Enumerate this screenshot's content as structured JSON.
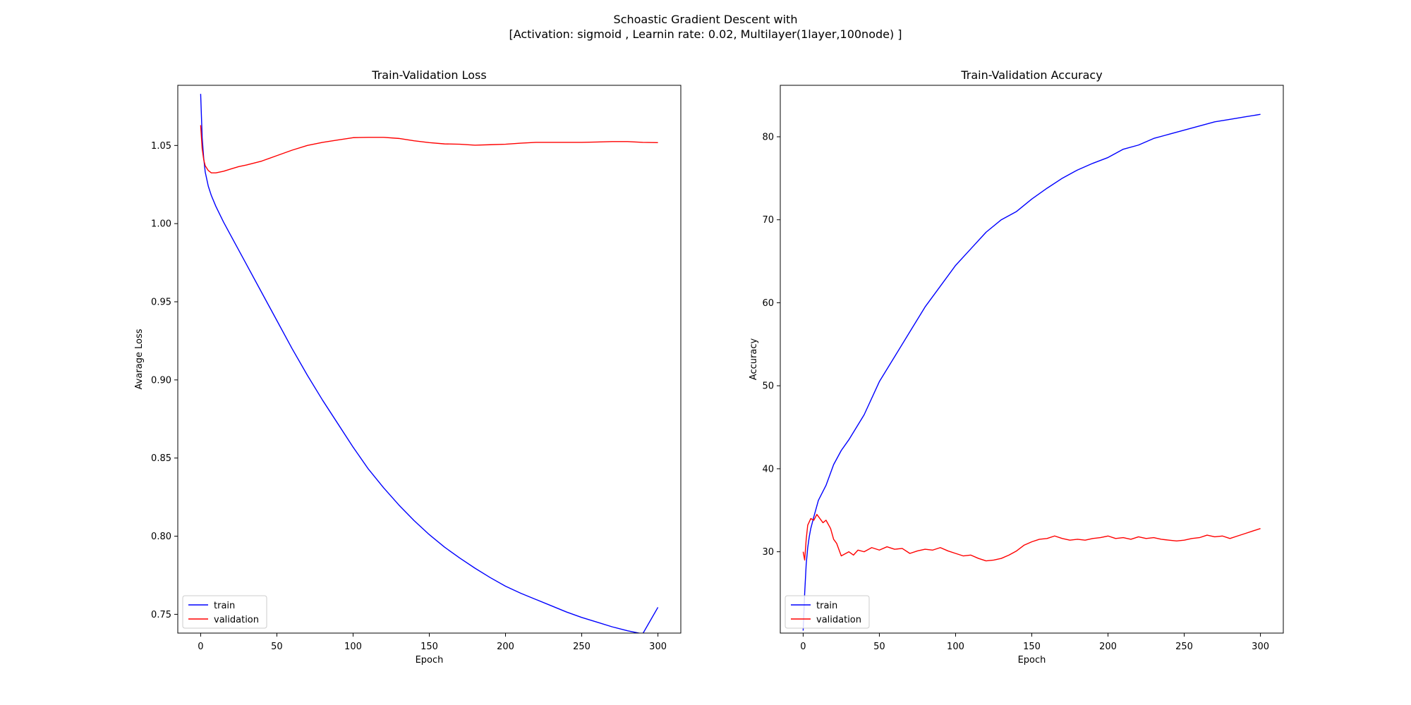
{
  "figure": {
    "suptitle_line1": "Schoastic Gradient Descent with",
    "suptitle_line2": "[Activation: sigmoid , Learnin rate: 0.02, Multilayer(1layer,100node) ]"
  },
  "chart_data": [
    {
      "type": "line",
      "title": "Train-Validation Loss",
      "xlabel": "Epoch",
      "ylabel": "Avarage Loss",
      "xlim": [
        -15,
        315
      ],
      "ylim": [
        0.738,
        1.0885
      ],
      "xticks": [
        0,
        50,
        100,
        150,
        200,
        250,
        300
      ],
      "yticks": [
        0.75,
        0.8,
        0.85,
        0.9,
        0.95,
        1.0,
        1.05
      ],
      "ytick_labels": [
        "0.75",
        "0.80",
        "0.85",
        "0.90",
        "0.95",
        "1.00",
        "1.05"
      ],
      "legend_position": "lower-left",
      "grid": false,
      "series": [
        {
          "name": "train",
          "color": "#0000ff",
          "x": [
            0,
            1,
            2,
            3,
            5,
            7,
            10,
            15,
            20,
            30,
            40,
            50,
            60,
            70,
            80,
            90,
            100,
            110,
            120,
            130,
            140,
            150,
            160,
            170,
            180,
            190,
            200,
            210,
            220,
            230,
            240,
            250,
            260,
            270,
            280,
            290,
            300
          ],
          "y": [
            1.083,
            1.055,
            1.042,
            1.033,
            1.024,
            1.018,
            1.011,
            1.001,
            0.992,
            0.974,
            0.956,
            0.938,
            0.92,
            0.903,
            0.887,
            0.872,
            0.857,
            0.843,
            0.831,
            0.82,
            0.81,
            0.801,
            0.793,
            0.786,
            0.7795,
            0.7735,
            0.768,
            0.7635,
            0.7595,
            0.7555,
            0.7515,
            0.748,
            0.745,
            0.742,
            0.7395,
            0.7375,
            0.7545
          ]
        },
        {
          "name": "validation",
          "color": "#ff0000",
          "x": [
            0,
            1,
            2,
            3,
            5,
            7,
            10,
            15,
            20,
            25,
            30,
            40,
            50,
            60,
            70,
            80,
            90,
            100,
            110,
            120,
            130,
            140,
            150,
            160,
            170,
            180,
            190,
            200,
            210,
            220,
            230,
            240,
            250,
            260,
            270,
            280,
            290,
            300
          ],
          "y": [
            1.063,
            1.048,
            1.041,
            1.037,
            1.034,
            1.0325,
            1.0325,
            1.0335,
            1.035,
            1.0365,
            1.0375,
            1.04,
            1.0435,
            1.047,
            1.05,
            1.052,
            1.0535,
            1.055,
            1.0552,
            1.0552,
            1.0545,
            1.053,
            1.0518,
            1.051,
            1.0508,
            1.0502,
            1.0505,
            1.0508,
            1.0515,
            1.052,
            1.052,
            1.052,
            1.052,
            1.0522,
            1.0525,
            1.0525,
            1.052,
            1.0518
          ]
        }
      ]
    },
    {
      "type": "line",
      "title": "Train-Validation Accuracy",
      "xlabel": "Epoch",
      "ylabel": "Accuracy",
      "xlim": [
        -15,
        315
      ],
      "ylim": [
        20.2,
        86.2
      ],
      "xticks": [
        0,
        50,
        100,
        150,
        200,
        250,
        300
      ],
      "yticks": [
        30,
        40,
        50,
        60,
        70,
        80
      ],
      "ytick_labels": [
        "30",
        "40",
        "50",
        "60",
        "70",
        "80"
      ],
      "legend_position": "lower-left",
      "grid": false,
      "series": [
        {
          "name": "train",
          "color": "#0000ff",
          "x": [
            0,
            1,
            2,
            3,
            4,
            5,
            7,
            10,
            15,
            20,
            25,
            30,
            40,
            50,
            60,
            70,
            80,
            90,
            100,
            110,
            120,
            130,
            140,
            150,
            160,
            170,
            180,
            190,
            200,
            210,
            220,
            230,
            240,
            250,
            260,
            270,
            280,
            290,
            300
          ],
          "y": [
            20.5,
            25.0,
            28.5,
            30.5,
            31.8,
            32.8,
            34.2,
            36.2,
            38.0,
            40.5,
            42.2,
            43.5,
            46.5,
            50.5,
            53.5,
            56.5,
            59.5,
            62.0,
            64.5,
            66.5,
            68.5,
            70.0,
            71.0,
            72.5,
            73.8,
            75.0,
            76.0,
            76.8,
            77.5,
            78.5,
            79.0,
            79.8,
            80.3,
            80.8,
            81.3,
            81.8,
            82.1,
            82.4,
            82.7
          ]
        },
        {
          "name": "validation",
          "color": "#ff0000",
          "x": [
            0,
            1,
            2,
            3,
            5,
            7,
            9,
            11,
            13,
            15,
            18,
            20,
            22,
            25,
            28,
            30,
            33,
            36,
            40,
            45,
            50,
            55,
            60,
            65,
            70,
            75,
            80,
            85,
            90,
            95,
            100,
            105,
            110,
            115,
            120,
            125,
            130,
            135,
            140,
            145,
            150,
            155,
            160,
            165,
            170,
            175,
            180,
            185,
            190,
            195,
            200,
            205,
            210,
            215,
            220,
            225,
            230,
            235,
            240,
            245,
            250,
            255,
            260,
            265,
            270,
            275,
            280,
            285,
            290,
            295,
            300
          ],
          "y": [
            30.0,
            29.0,
            31.5,
            33.2,
            34.0,
            33.8,
            34.5,
            34.0,
            33.5,
            33.8,
            32.8,
            31.5,
            31.0,
            29.5,
            29.8,
            30.0,
            29.6,
            30.2,
            30.0,
            30.5,
            30.2,
            30.6,
            30.3,
            30.4,
            29.8,
            30.1,
            30.3,
            30.2,
            30.5,
            30.1,
            29.8,
            29.5,
            29.6,
            29.2,
            28.9,
            29.0,
            29.2,
            29.6,
            30.1,
            30.8,
            31.2,
            31.5,
            31.6,
            31.9,
            31.6,
            31.4,
            31.5,
            31.4,
            31.6,
            31.7,
            31.9,
            31.6,
            31.7,
            31.5,
            31.8,
            31.6,
            31.7,
            31.5,
            31.4,
            31.3,
            31.4,
            31.6,
            31.7,
            32.0,
            31.8,
            31.9,
            31.6,
            31.9,
            32.2,
            32.5,
            32.8
          ]
        }
      ]
    }
  ]
}
